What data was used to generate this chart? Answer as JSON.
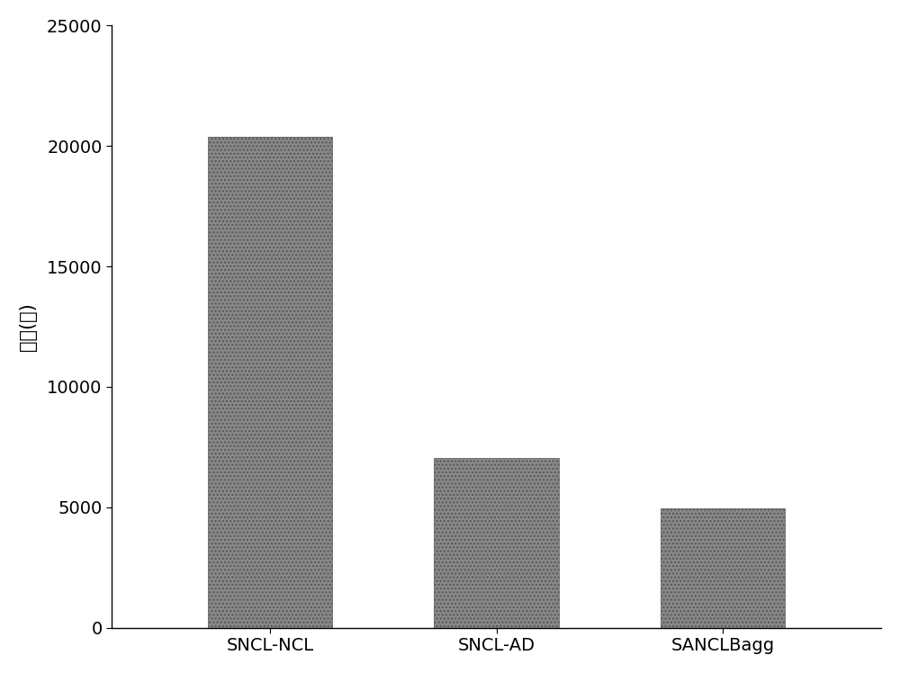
{
  "categories": [
    "SNCL-NCL",
    "SNCL-AD",
    "SANCLBagg"
  ],
  "values": [
    20400,
    7050,
    4950
  ],
  "bar_color": "#888888",
  "hatch": "....",
  "ylabel": "时间(秒)",
  "ylim": [
    0,
    25000
  ],
  "yticks": [
    0,
    5000,
    10000,
    15000,
    20000,
    25000
  ],
  "background_color": "#ffffff",
  "bar_width": 0.55,
  "ylabel_fontsize": 15,
  "tick_fontsize": 14,
  "xlabel_fontsize": 14,
  "edge_color": "#555555",
  "figsize": [
    10.0,
    7.48
  ],
  "dpi": 100
}
